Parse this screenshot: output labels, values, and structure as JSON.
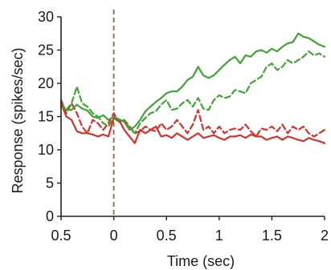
{
  "chart_data": {
    "type": "line",
    "title": "",
    "xlabel": "Time (sec)",
    "ylabel": "Response (spikes/sec)",
    "xlim": [
      -0.5,
      2
    ],
    "ylim": [
      0,
      30
    ],
    "x_ticks": [
      {
        "value": -0.5,
        "label": "0.5"
      },
      {
        "value": 0,
        "label": "0"
      },
      {
        "value": 0.5,
        "label": "0.5"
      },
      {
        "value": 1,
        "label": "1"
      },
      {
        "value": 1.5,
        "label": "1.5"
      },
      {
        "value": 2,
        "label": "2"
      }
    ],
    "y_ticks": [
      {
        "value": 0,
        "label": "0"
      },
      {
        "value": 5,
        "label": "5"
      },
      {
        "value": 10,
        "label": "10"
      },
      {
        "value": 15,
        "label": "15"
      },
      {
        "value": 20,
        "label": "20"
      },
      {
        "value": 25,
        "label": "25"
      },
      {
        "value": 30,
        "label": "30"
      }
    ],
    "reference_line": {
      "x": 0,
      "style": "dashed",
      "color": "#8b6a4e"
    },
    "grid": false,
    "x": [
      -0.5,
      -0.45,
      -0.4,
      -0.35,
      -0.3,
      -0.25,
      -0.2,
      -0.15,
      -0.1,
      -0.05,
      0,
      0.05,
      0.1,
      0.15,
      0.2,
      0.25,
      0.3,
      0.35,
      0.4,
      0.45,
      0.5,
      0.55,
      0.6,
      0.65,
      0.7,
      0.75,
      0.8,
      0.85,
      0.9,
      0.95,
      1,
      1.05,
      1.1,
      1.15,
      1.2,
      1.25,
      1.3,
      1.35,
      1.4,
      1.45,
      1.5,
      1.55,
      1.6,
      1.65,
      1.7,
      1.75,
      1.8,
      1.85,
      1.9,
      1.95,
      2
    ],
    "series": [
      {
        "color": "#3fa535",
        "dash": "solid",
        "values": [
          16.5,
          16.0,
          16.0,
          16.8,
          16.2,
          15.9,
          15.0,
          14.8,
          15.2,
          14.5,
          15.0,
          14.6,
          14.2,
          13.0,
          13.5,
          14.5,
          15.8,
          16.5,
          17.2,
          17.8,
          18.5,
          18.8,
          18.8,
          19.5,
          20.5,
          21.0,
          22.5,
          21.2,
          20.8,
          21.2,
          22.0,
          22.8,
          23.5,
          24.0,
          23.0,
          24.2,
          24.0,
          24.8,
          25.0,
          24.6,
          25.2,
          24.8,
          25.5,
          26.0,
          26.2,
          27.5,
          27.0,
          26.8,
          26.3,
          25.8,
          25.5
        ]
      },
      {
        "color": "#3fa535",
        "dash": "dashed",
        "values": [
          17.0,
          16.0,
          17.0,
          19.5,
          17.0,
          16.5,
          15.5,
          15.0,
          14.0,
          13.5,
          14.8,
          14.2,
          14.5,
          13.2,
          12.5,
          14.0,
          14.8,
          15.5,
          15.8,
          16.8,
          17.5,
          16.0,
          16.2,
          17.0,
          17.5,
          16.5,
          17.8,
          16.2,
          16.0,
          17.5,
          18.2,
          17.8,
          18.0,
          19.0,
          18.8,
          18.5,
          20.0,
          20.5,
          21.0,
          22.5,
          23.0,
          22.0,
          22.5,
          23.5,
          23.0,
          23.5,
          24.0,
          24.8,
          24.2,
          24.5,
          24.0
        ]
      },
      {
        "color": "#d9302a",
        "dash": "solid",
        "values": [
          17.0,
          15.0,
          14.5,
          12.8,
          12.5,
          12.5,
          12.3,
          12.0,
          12.3,
          12.0,
          14.8,
          14.5,
          13.0,
          12.0,
          11.0,
          13.0,
          12.5,
          13.0,
          13.5,
          12.0,
          12.2,
          11.8,
          12.5,
          12.0,
          11.5,
          12.0,
          12.5,
          11.8,
          12.0,
          12.2,
          11.8,
          11.5,
          12.0,
          12.0,
          12.2,
          11.8,
          12.3,
          12.0,
          12.0,
          11.5,
          11.8,
          12.0,
          11.5,
          12.0,
          11.8,
          11.5,
          11.3,
          11.8,
          11.5,
          11.3,
          11.0
        ]
      },
      {
        "color": "#d9302a",
        "dash": "dashed",
        "values": [
          17.5,
          15.5,
          17.0,
          15.5,
          13.5,
          12.5,
          14.5,
          14.0,
          13.0,
          14.0,
          15.5,
          14.2,
          14.5,
          13.5,
          12.5,
          12.8,
          13.5,
          13.0,
          12.8,
          14.0,
          13.0,
          13.5,
          14.5,
          13.5,
          12.5,
          13.8,
          16.0,
          13.0,
          13.5,
          12.5,
          13.5,
          12.5,
          13.0,
          13.2,
          13.0,
          13.8,
          12.8,
          12.0,
          13.2,
          13.0,
          13.5,
          12.8,
          13.8,
          12.5,
          13.5,
          13.0,
          13.5,
          12.5,
          12.0,
          12.5,
          13.0
        ]
      }
    ]
  }
}
